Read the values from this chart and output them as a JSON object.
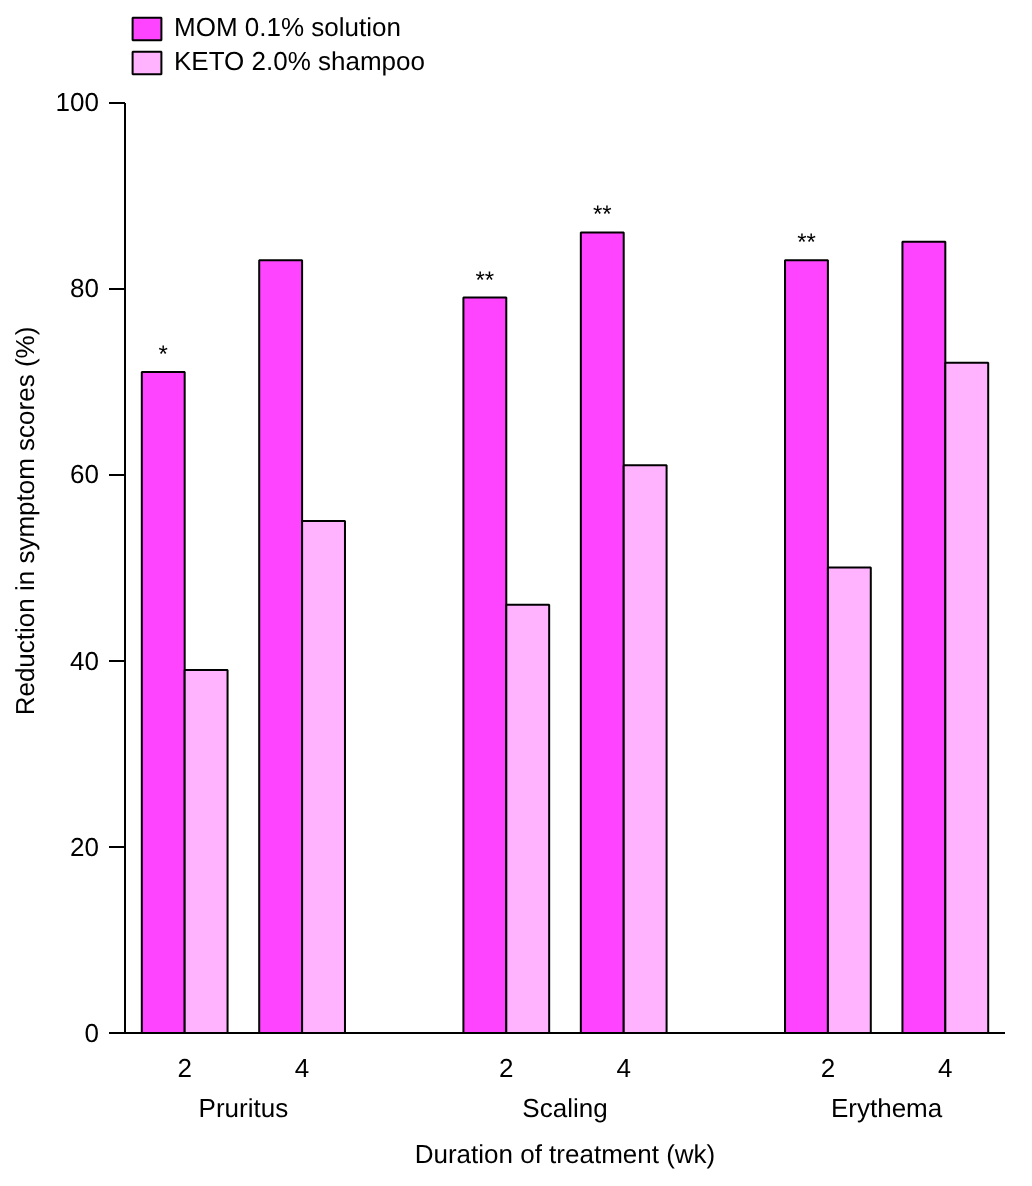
{
  "chart_data": {
    "type": "bar",
    "xlabel": "Duration of treatment (wk)",
    "ylabel": "Reduction in symptom scores (%)",
    "categories": [
      "2",
      "4",
      "2",
      "4",
      "2",
      "4"
    ],
    "series": [
      {
        "name": "MOM 0.1% solution",
        "color": "#ff44ff",
        "values": [
          71,
          83,
          79,
          86,
          83,
          85
        ]
      },
      {
        "name": "KETO 2.0% shampoo",
        "color": "#ffb3ff",
        "values": [
          39,
          55,
          46,
          61,
          50,
          72
        ]
      }
    ],
    "ylim": [
      0,
      100
    ],
    "yticks": [
      0,
      20,
      40,
      60,
      80,
      100
    ],
    "legend": "top left",
    "annotations": [
      "Pruritus",
      "Scaling",
      "Erythema",
      {
        "text": "*",
        "y": 71
      },
      {
        "text": "**",
        "y": 79
      },
      {
        "text": "**",
        "y": 86
      },
      {
        "text": "**",
        "y": 83
      }
    ]
  }
}
